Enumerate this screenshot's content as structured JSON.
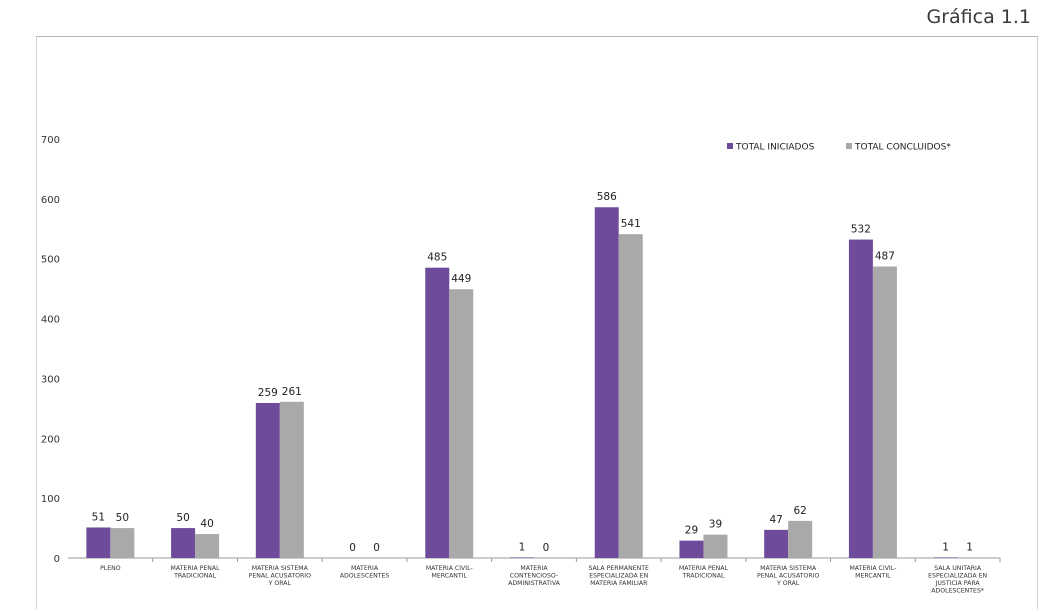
{
  "figure_label": "Gráfica 1.1",
  "colors": {
    "iniciados": "#6f4c9b",
    "concluidos": "#a9a9a9"
  },
  "chart_data": {
    "type": "bar",
    "title": "",
    "xlabel": "",
    "ylabel": "",
    "ylim": [
      0,
      700
    ],
    "yticks": [
      0,
      100,
      200,
      300,
      400,
      500,
      600,
      700
    ],
    "grid": false,
    "legend_position": "top-right",
    "categories": [
      [
        "PLENO"
      ],
      [
        "MATERIA PENAL",
        "TRADICIONAL"
      ],
      [
        "MATERIA SISTEMA",
        "PENAL ACUSATORIO",
        "Y ORAL"
      ],
      [
        "MATERIA",
        "ADOLESCENTES"
      ],
      [
        "MATERIA CIVIL-",
        "MERCANTIL"
      ],
      [
        "MATERIA",
        "CONTENCIOSO-",
        "ADMINISTRATIVA"
      ],
      [
        "SALA PERMANENTE",
        "ESPECIALIZADA EN",
        "MATERIA FAMILIAR"
      ],
      [
        "MATERIA PENAL",
        "TRADICIONAL"
      ],
      [
        "MATERIA SISTEMA",
        "PENAL ACUSATORIO",
        "Y ORAL"
      ],
      [
        "MATERIA CIVIL-",
        "MERCANTIL"
      ],
      [
        "SALA UNITARIA",
        "ESPECIALIZADA EN",
        "JUSTICIA PARA",
        "ADOLESCENTES*"
      ]
    ],
    "series": [
      {
        "name": "TOTAL INICIADOS",
        "values": [
          51,
          50,
          259,
          0,
          485,
          1,
          586,
          29,
          47,
          532,
          1
        ]
      },
      {
        "name": "TOTAL CONCLUIDOS*",
        "values": [
          50,
          40,
          261,
          0,
          449,
          0,
          541,
          39,
          62,
          487,
          1
        ]
      }
    ]
  }
}
